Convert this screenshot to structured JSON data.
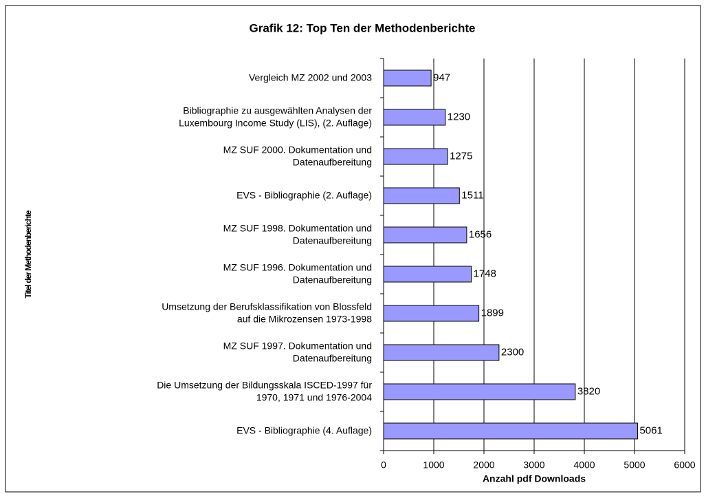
{
  "chart_data": {
    "type": "barh",
    "title": "Grafik 12: Top Ten der Methodenberichte",
    "xlabel": "Anzahl pdf Downloads",
    "ylabel": "Titel der Methodenberichte",
    "categories": [
      [
        "Vergleich MZ 2002 und 2003"
      ],
      [
        "Bibliographie zu ausgewählten Analysen der",
        "Luxembourg Income Study (LIS), (2. Auflage)"
      ],
      [
        "MZ SUF 2000. Dokumentation und",
        "Datenaufbereitung"
      ],
      [
        "EVS - Bibliographie  (2. Auflage)"
      ],
      [
        "MZ SUF 1998. Dokumentation und",
        "Datenaufbereitung"
      ],
      [
        "MZ SUF 1996. Dokumentation und",
        "Datenaufbereitung"
      ],
      [
        "Umsetzung der Berufsklassifikation von Blossfeld",
        "auf die Mikrozensen 1973-1998"
      ],
      [
        "MZ SUF 1997. Dokumentation und",
        "Datenaufbereitung"
      ],
      [
        "Die Umsetzung der Bildungsskala ISCED-1997 für",
        "1970,  1971 und  1976-2004"
      ],
      [
        "EVS - Bibliographie (4. Auflage)"
      ]
    ],
    "values": [
      947,
      1230,
      1275,
      1511,
      1656,
      1748,
      1899,
      2300,
      3820,
      5061
    ],
    "color": "#9999ff",
    "xlim": [
      0,
      6000
    ],
    "xticks": [
      0,
      1000,
      2000,
      3000,
      4000,
      5000,
      6000
    ],
    "grid": true
  }
}
